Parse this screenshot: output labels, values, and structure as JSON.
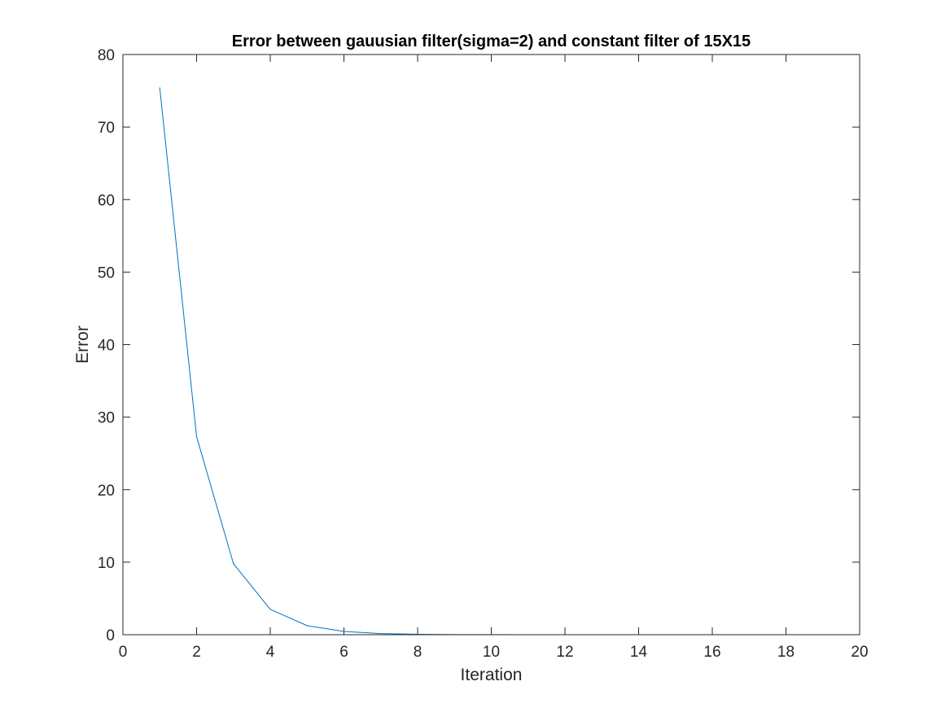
{
  "chart_data": {
    "type": "line",
    "title": "Error between gauusian filter(sigma=2) and constant filter of 15X15",
    "xlabel": "Iteration",
    "ylabel": "Error",
    "xlim": [
      0,
      20
    ],
    "ylim": [
      0,
      80
    ],
    "x_ticks": [
      "0",
      "2",
      "4",
      "6",
      "8",
      "10",
      "12",
      "14",
      "16",
      "18",
      "20"
    ],
    "y_ticks": [
      "0",
      "10",
      "20",
      "30",
      "40",
      "50",
      "60",
      "70",
      "80"
    ],
    "grid": false,
    "series": [
      {
        "color": "#0072bd",
        "x": [
          1,
          2,
          3,
          4,
          5,
          6,
          7,
          8,
          9,
          10,
          11,
          12,
          13,
          14,
          15,
          16,
          17,
          18,
          19,
          20
        ],
        "values": [
          75.4,
          27.3,
          9.8,
          3.5,
          1.25,
          0.45,
          0.16,
          0.06,
          0.02,
          0.01,
          0.0,
          0.0,
          0.0,
          0.0,
          0.0,
          0.0,
          0.0,
          0.0,
          0.0,
          0.0
        ]
      }
    ]
  }
}
